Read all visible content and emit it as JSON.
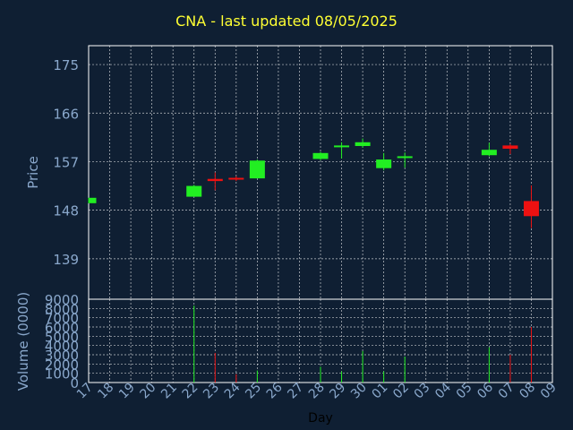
{
  "chart_data": {
    "title": "CNA - last updated 08/05/2025",
    "type": "candlestick",
    "xlabel": "Day",
    "colors": {
      "background": "#0f1f33",
      "axis": "#ffffff",
      "grid": "#ffffff",
      "tick_text": "#8aa8cc",
      "title": "#ffff33",
      "up": "#22ee22",
      "down": "#ee1111"
    },
    "grid": true,
    "x_tick_labels": [
      "17",
      "18",
      "19",
      "20",
      "21",
      "22",
      "23",
      "24",
      "25",
      "26",
      "27",
      "28",
      "29",
      "30",
      "01",
      "02",
      "03",
      "04",
      "05",
      "06",
      "07",
      "08",
      "09"
    ],
    "price_panel": {
      "ylabel": "Price",
      "yticks": [
        "175",
        "166",
        "157",
        "148",
        "139"
      ],
      "ytick_values": [
        175,
        166,
        157,
        148,
        139
      ],
      "ylim": [
        131.5,
        178.5
      ]
    },
    "volume_panel": {
      "ylabel": "Volume (0000)",
      "yticks": [
        "9000",
        "8000",
        "7000",
        "6000",
        "5000",
        "4000",
        "3000",
        "2000",
        "1000",
        "0"
      ],
      "ytick_values": [
        9000,
        8000,
        7000,
        6000,
        5000,
        4000,
        3000,
        2000,
        1000,
        0
      ],
      "ylim": [
        0,
        9000
      ]
    },
    "candles": [
      {
        "day": "17",
        "open": 149.3,
        "high": 150.3,
        "low": 149.3,
        "close": 150.3,
        "volume": 0
      },
      {
        "day": "22",
        "open": 150.5,
        "high": 152.7,
        "low": 150.5,
        "close": 152.5,
        "volume": 8300
      },
      {
        "day": "23",
        "open": 153.8,
        "high": 155.0,
        "low": 151.7,
        "close": 153.4,
        "volume": 3200
      },
      {
        "day": "24",
        "open": 154.0,
        "high": 154.3,
        "low": 153.4,
        "close": 153.7,
        "volume": 900
      },
      {
        "day": "25",
        "open": 153.9,
        "high": 157.4,
        "low": 153.9,
        "close": 157.2,
        "volume": 1300
      },
      {
        "day": "28",
        "open": 157.5,
        "high": 158.8,
        "low": 157.3,
        "close": 158.6,
        "volume": 1700
      },
      {
        "day": "29",
        "open": 159.8,
        "high": 160.6,
        "low": 157.6,
        "close": 160.0,
        "volume": 1200
      },
      {
        "day": "30",
        "open": 159.9,
        "high": 161.3,
        "low": 159.6,
        "close": 160.6,
        "volume": 3400
      },
      {
        "day": "01",
        "open": 155.8,
        "high": 158.6,
        "low": 155.4,
        "close": 157.4,
        "volume": 1200
      },
      {
        "day": "02",
        "open": 157.9,
        "high": 158.7,
        "low": 155.9,
        "close": 158.0,
        "volume": 2800
      },
      {
        "day": "06",
        "open": 158.2,
        "high": 160.5,
        "low": 158.0,
        "close": 159.2,
        "volume": 3800
      },
      {
        "day": "07",
        "open": 160.0,
        "high": 160.3,
        "low": 158.4,
        "close": 159.4,
        "volume": 3000
      },
      {
        "day": "08",
        "open": 149.7,
        "high": 152.6,
        "low": 144.7,
        "close": 146.9,
        "volume": 6000
      }
    ]
  }
}
